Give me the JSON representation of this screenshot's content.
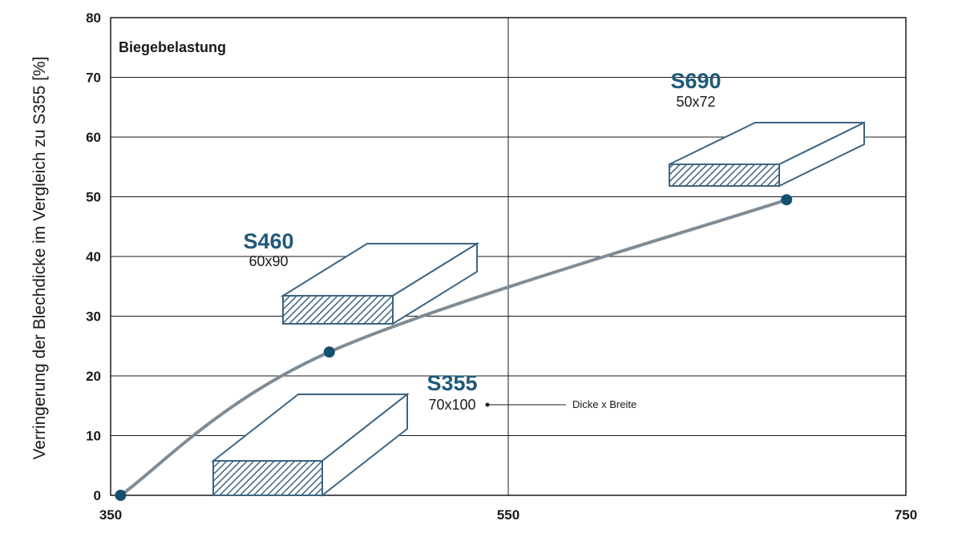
{
  "colors": {
    "accent": "#1f5a7a",
    "curve": "#7f8c96",
    "marker": "#14506e",
    "box_stroke": "#3d6480",
    "grid": "#1a1a1a"
  },
  "chart_data": {
    "type": "line",
    "title": "Biegebelastung",
    "xlabel": "",
    "ylabel": "Verringerung der Blechdicke im Vergleich zu  S355 [%]",
    "xlim": [
      350,
      750
    ],
    "ylim": [
      0,
      80
    ],
    "xticks": [
      "350",
      "550",
      "750"
    ],
    "yticks": [
      "0",
      "10",
      "20",
      "30",
      "40",
      "50",
      "60",
      "70",
      "80"
    ],
    "grid": true,
    "series": [
      {
        "x": [
          355,
          460,
          690
        ],
        "y": [
          0,
          24,
          49.5
        ]
      }
    ],
    "materials": [
      {
        "name": "S355",
        "dims": "70x100"
      },
      {
        "name": "S460",
        "dims": "60x90"
      },
      {
        "name": "S690",
        "dims": "50x72"
      }
    ],
    "annotation": "Dicke x Breite"
  }
}
